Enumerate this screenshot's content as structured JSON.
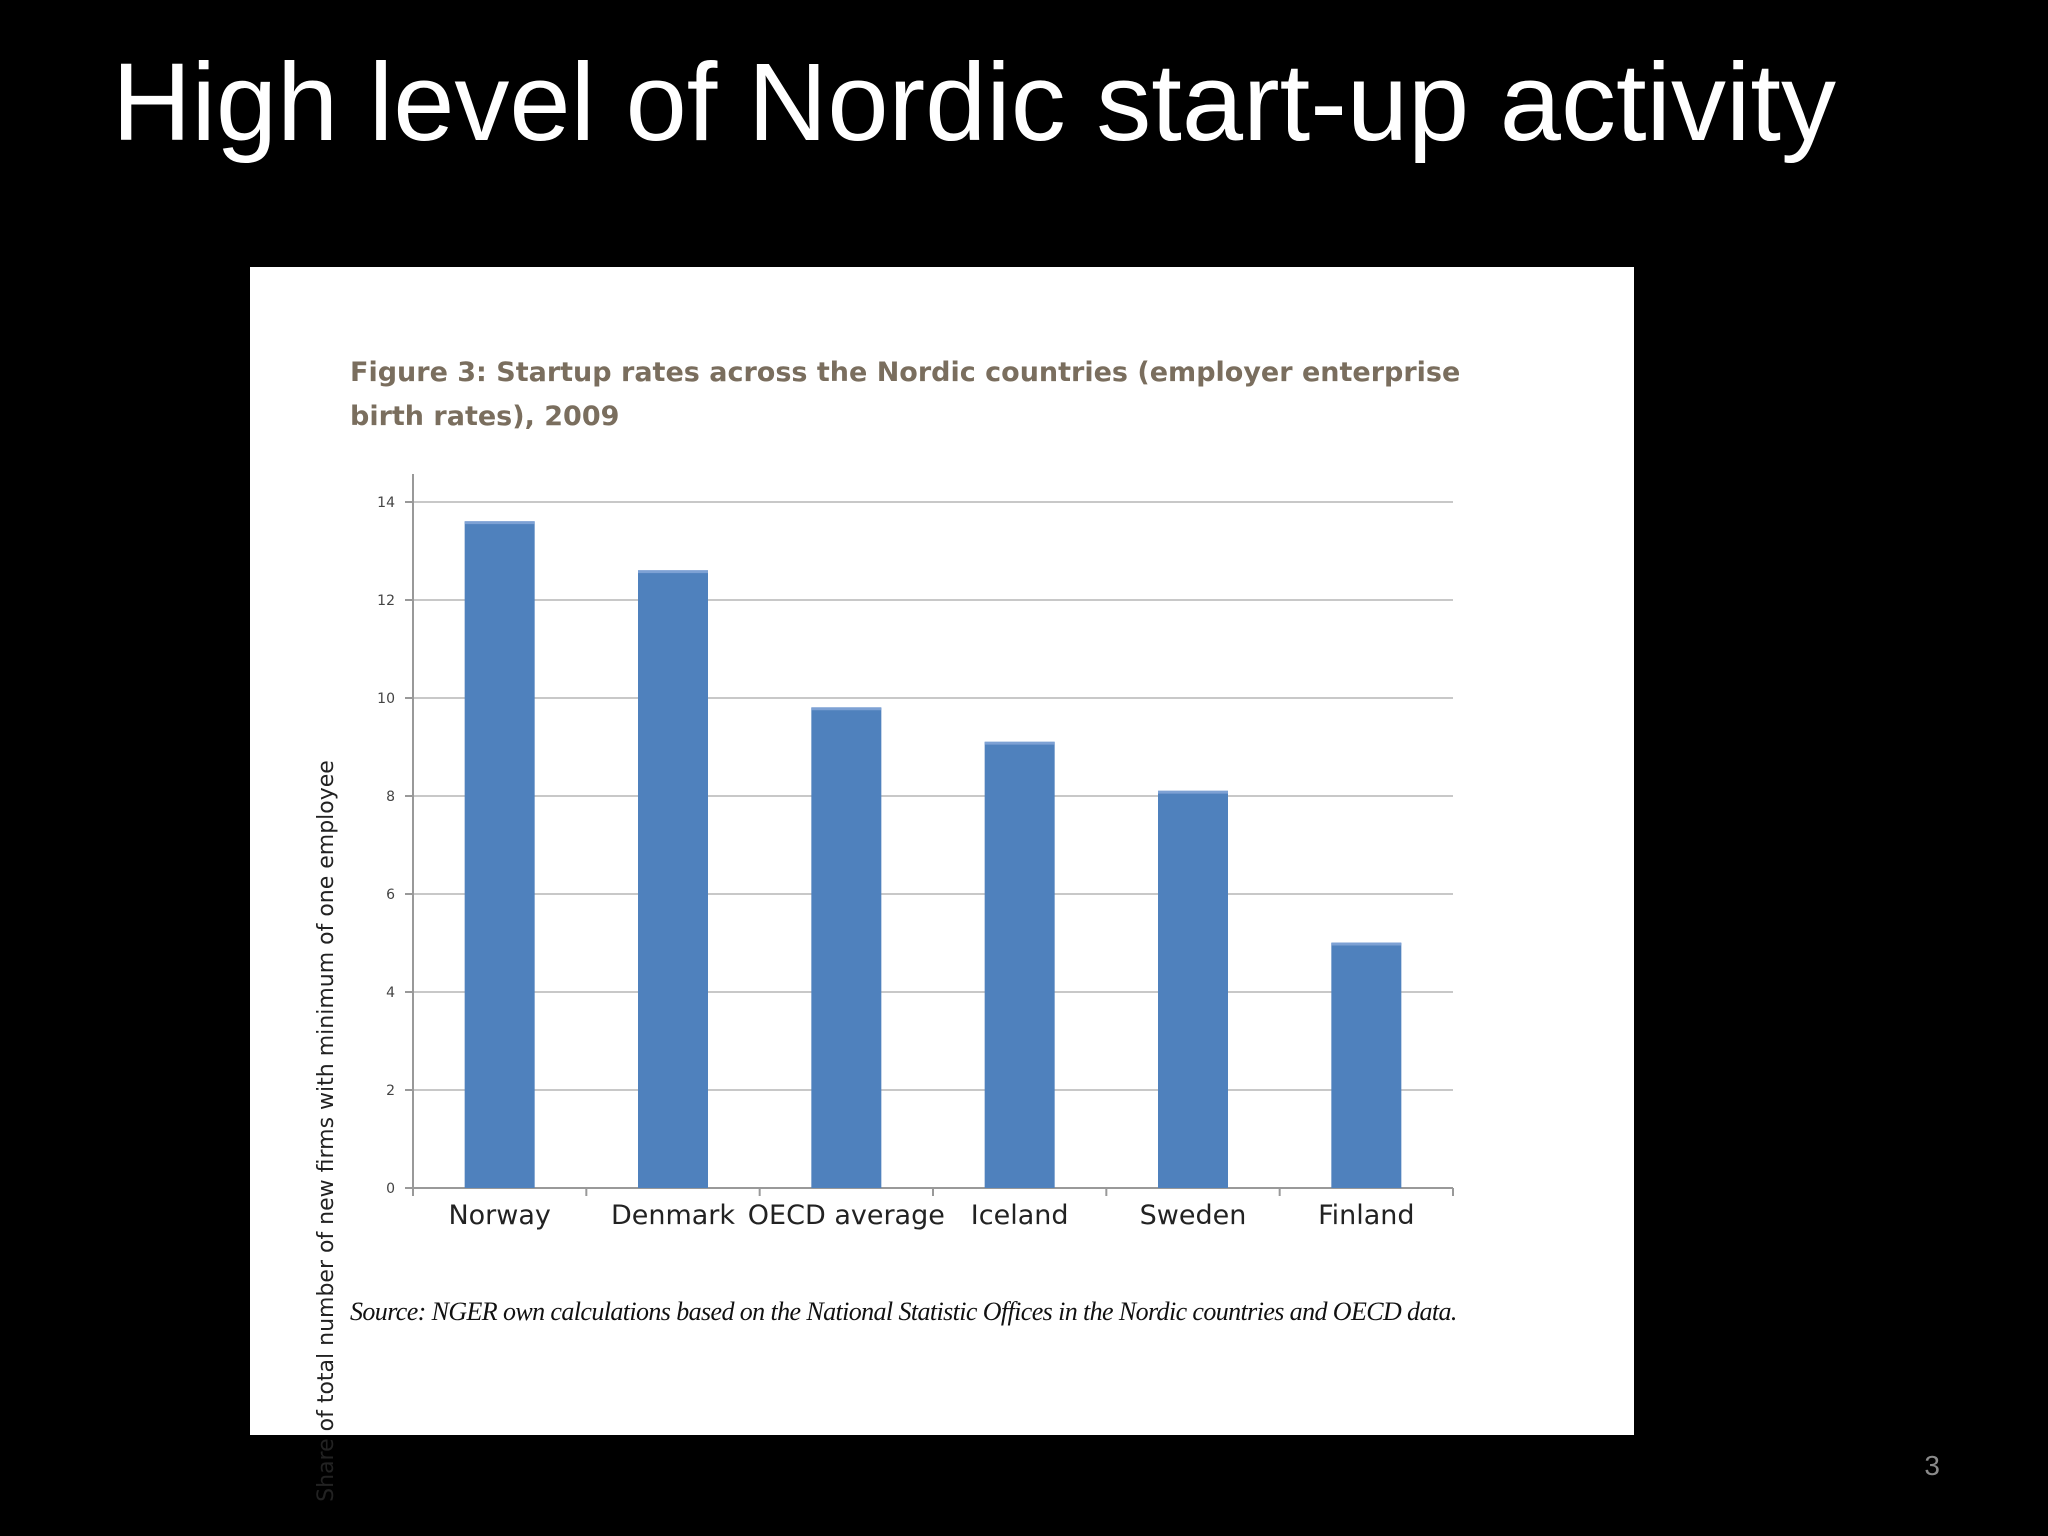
{
  "slide": {
    "title": "High level of Nordic start-up activity",
    "page_number": "3"
  },
  "figure": {
    "caption": "Figure 3: Startup rates across the Nordic countries (employer enterprise birth rates), 2009",
    "source": "Source: NGER own calculations based on the National Statistic Offices in the Nordic countries and OECD data."
  },
  "chart_data": {
    "type": "bar",
    "title": "Figure 3: Startup rates across the Nordic countries (employer enterprise birth rates), 2009",
    "xlabel": "",
    "ylabel": "Share of total number of new firms with minimum of one employee",
    "categories": [
      "Norway",
      "Denmark",
      "OECD average",
      "Iceland",
      "Sweden",
      "Finland"
    ],
    "values": [
      13.6,
      12.6,
      9.8,
      9.1,
      8.1,
      5.0
    ],
    "ylim": [
      0,
      14
    ],
    "yticks": [
      0,
      2,
      4,
      6,
      8,
      10,
      12,
      14
    ],
    "grid": true,
    "legend": "none",
    "bar_color": "#4f81bd",
    "grid_color": "#c8c8c8",
    "axis_color": "#999999"
  }
}
